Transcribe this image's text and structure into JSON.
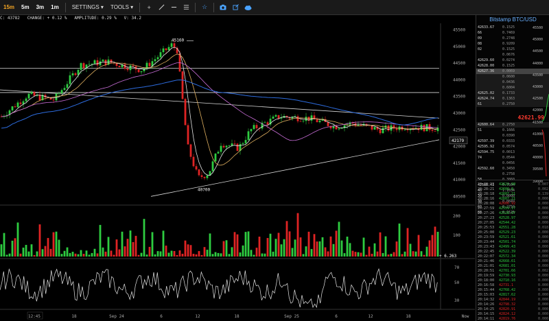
{
  "toolbar": {
    "timeframes": [
      {
        "label": "15m",
        "active": true
      },
      {
        "label": "5m",
        "active": false
      },
      {
        "label": "3m",
        "active": false
      },
      {
        "label": "1m",
        "active": false
      }
    ],
    "settings_label": "SETTINGS ▾",
    "tools_label": "TOOLS ▾",
    "icons": [
      "plus-icon",
      "pencil-icon",
      "horizontal-line-icon",
      "fibonacci-icon",
      "star-icon",
      "camera-icon",
      "popout-icon",
      "cloud-icon"
    ]
  },
  "info_line": {
    "close": "C: 43782",
    "change": "CHANGE: + 0.12 %",
    "amplitude": "AMPLITUDE: 0.29 %",
    "volume": "V: 34.2"
  },
  "chart": {
    "price_axis": [
      "45500",
      "45000",
      "44500",
      "44000",
      "43500",
      "43000",
      "42500",
      "42000",
      "41500",
      "41000",
      "40500"
    ],
    "annotations": {
      "high": "45160",
      "low": "40700",
      "current": "42179"
    },
    "volume_axis": [
      "200",
      "100"
    ],
    "volume_value": "+ 6.263",
    "osc_axis": [
      "70",
      "50",
      "30"
    ],
    "time_axis": [
      "12:45",
      "18",
      "Sep 24",
      "6",
      "12",
      "18",
      "Sep 25",
      "6",
      "12",
      "18",
      "Now"
    ]
  },
  "panel": {
    "title": "Bitstamp BTC/USD",
    "last_price": "42621.99",
    "asks": [
      {
        "price": "42633.67",
        "amount": "0.1525"
      },
      {
        "price": "66",
        "amount": "0.7469"
      },
      {
        "price": "09",
        "amount": "0.2748"
      },
      {
        "price": "08",
        "amount": "0.9209"
      },
      {
        "price": "02",
        "amount": "0.1525"
      },
      {
        "price": "",
        "amount": "0.0676"
      },
      {
        "price": "42629.60",
        "amount": "0.0274"
      },
      {
        "price": "42628.00",
        "amount": "0.1525"
      },
      {
        "price": "42627.36",
        "amount": "0.0069"
      },
      {
        "price": "",
        "amount": "0.0600"
      },
      {
        "price": "",
        "amount": "0.0436"
      },
      {
        "price": "",
        "amount": "0.6004"
      },
      {
        "price": "42625.02",
        "amount": "0.1733"
      },
      {
        "price": "42624.74",
        "amount": "0.1363"
      },
      {
        "price": "61",
        "amount": "0.2750"
      }
    ],
    "bids": [
      {
        "price": "42600.64",
        "amount": "0.2750"
      },
      {
        "price": "51",
        "amount": "0.1666"
      },
      {
        "price": "",
        "amount": "0.0390"
      },
      {
        "price": "42597.39",
        "amount": "0.0333"
      },
      {
        "price": "42595.92",
        "amount": "0.0574"
      },
      {
        "price": "42594.75",
        "amount": "0.0013"
      },
      {
        "price": "74",
        "amount": "0.0544"
      },
      {
        "price": "",
        "amount": "0.0456"
      },
      {
        "price": "42592.60",
        "amount": "0.3450"
      },
      {
        "price": "",
        "amount": "0.2758"
      },
      {
        "price": "58",
        "amount": "0.3860"
      },
      {
        "price": "42588.41",
        "amount": "0.7504"
      },
      {
        "price": "40",
        "amount": "1.1034"
      },
      {
        "price": "39",
        "amount": "0.0000"
      },
      {
        "price": "30",
        "amount": "0.0849"
      },
      {
        "price": "03",
        "amount": "0.2750"
      },
      {
        "price": "03",
        "amount": "0.1525"
      }
    ],
    "depth_scale": [
      "45500",
      "45000",
      "44500",
      "44000",
      "43500",
      "43000",
      "42500",
      "42000",
      "41500",
      "41000",
      "40500",
      "40000",
      "39500",
      "39000"
    ],
    "trades": [
      {
        "time": "20:28:23",
        "price": "42621.99",
        "amount": "0.007",
        "side": "buy"
      },
      {
        "time": "20:28:21",
        "price": "42609.8",
        "amount": "0.002",
        "side": "buy"
      },
      {
        "time": "20:28:18",
        "price": "42607.21",
        "amount": "0.139",
        "side": "buy"
      },
      {
        "time": "20:28:16",
        "price": "42607.21",
        "amount": "0.000",
        "side": "buy"
      },
      {
        "time": "20:28:08",
        "price": "42606.92",
        "amount": "0.000",
        "side": "sell"
      },
      {
        "time": "20:27:59",
        "price": "42559.17",
        "amount": "0.000",
        "side": "buy"
      },
      {
        "time": "20:27:26",
        "price": "42528.97",
        "amount": "0.000",
        "side": "buy"
      },
      {
        "time": "20:27:23",
        "price": "42528.97",
        "amount": "0.000",
        "side": "buy"
      },
      {
        "time": "20:27:05",
        "price": "42544.42",
        "amount": "0.000",
        "side": "buy"
      },
      {
        "time": "20:25:53",
        "price": "42551.28",
        "amount": "0.018",
        "side": "buy"
      },
      {
        "time": "20:25:00",
        "price": "42529.23",
        "amount": "0.000",
        "side": "buy"
      },
      {
        "time": "20:23:59",
        "price": "42521.61",
        "amount": "0.000",
        "side": "buy"
      },
      {
        "time": "20:23:44",
        "price": "42501.74",
        "amount": "0.000",
        "side": "buy"
      },
      {
        "time": "20:23:43",
        "price": "42499.43",
        "amount": "0.000",
        "side": "buy"
      },
      {
        "time": "20:22:45",
        "price": "42522.39",
        "amount": "0.000",
        "side": "buy"
      },
      {
        "time": "20:22:07",
        "price": "42572.34",
        "amount": "0.000",
        "side": "buy"
      },
      {
        "time": "20:21:46",
        "price": "42668.61",
        "amount": "0.000",
        "side": "buy"
      },
      {
        "time": "20:21:01",
        "price": "42681.01",
        "amount": "0.000",
        "side": "buy"
      },
      {
        "time": "20:20:51",
        "price": "42701.66",
        "amount": "0.002",
        "side": "buy"
      },
      {
        "time": "20:19:59",
        "price": "42730.93",
        "amount": "0.000",
        "side": "buy"
      },
      {
        "time": "20:18:00",
        "price": "42710.16",
        "amount": "0.000",
        "side": "buy"
      },
      {
        "time": "20:16:58",
        "price": "42731.1",
        "amount": "0.000",
        "side": "sell"
      },
      {
        "time": "20:15:44",
        "price": "42768.42",
        "amount": "0.000",
        "side": "buy"
      },
      {
        "time": "20:15:03",
        "price": "42817.62",
        "amount": "0.000",
        "side": "buy"
      },
      {
        "time": "20:14:32",
        "price": "42844.19",
        "amount": "0.000",
        "side": "sell"
      },
      {
        "time": "20:14:26",
        "price": "42798.32",
        "amount": "0.000",
        "side": "sell"
      },
      {
        "time": "20:14:25",
        "price": "42820.91",
        "amount": "0.000",
        "side": "sell"
      },
      {
        "time": "20:14:15",
        "price": "42824.12",
        "amount": "0.000",
        "side": "sell"
      },
      {
        "time": "20:14:11",
        "price": "42819.76",
        "amount": "0.000",
        "side": "sell"
      }
    ]
  },
  "colors": {
    "up": "#2ecc40",
    "down": "#e02424",
    "ma_white": "#e8e8e8",
    "ma_blue": "#2d6cdf",
    "ma_pink": "#c86dd7",
    "ma_gold": "#e0b060",
    "accent": "#f5a623",
    "last_price": "#ff3b30"
  }
}
